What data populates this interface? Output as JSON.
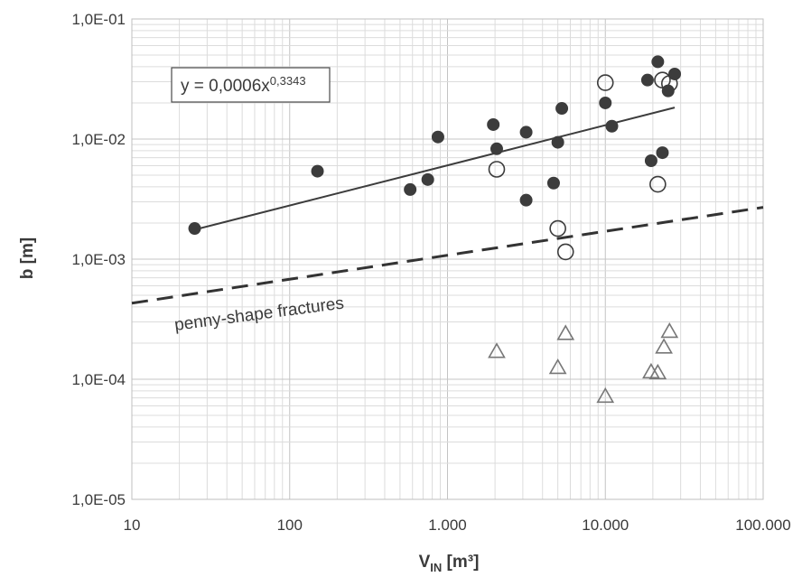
{
  "chart_data": {
    "type": "scatter",
    "xscale": "log",
    "yscale": "log",
    "xlim": [
      10,
      100000
    ],
    "ylim": [
      1e-05,
      0.1
    ],
    "grid": true,
    "xlabel": "V",
    "xlabel_sub": "IN",
    "xlabel_unit": " [m³]",
    "ylabel": "b [m]",
    "x_ticks": [
      {
        "value": 10,
        "label": "10"
      },
      {
        "value": 100,
        "label": "100"
      },
      {
        "value": 1000,
        "label": "1.000"
      },
      {
        "value": 10000,
        "label": "10.000"
      },
      {
        "value": 100000,
        "label": "100.000"
      }
    ],
    "y_ticks": [
      {
        "value": 1e-05,
        "label": "1,0E-05"
      },
      {
        "value": 0.0001,
        "label": "1,0E-04"
      },
      {
        "value": 0.001,
        "label": "1,0E-03"
      },
      {
        "value": 0.01,
        "label": "1,0E-02"
      },
      {
        "value": 0.1,
        "label": "1,0E-01"
      }
    ],
    "series": [
      {
        "marker": "filled-circle",
        "color": "#3c3c3c",
        "points": [
          [
            25,
            0.0018
          ],
          [
            150,
            0.0054
          ],
          [
            580,
            0.0038
          ],
          [
            750,
            0.0046
          ],
          [
            870,
            0.0104
          ],
          [
            1950,
            0.0132
          ],
          [
            2050,
            0.0083
          ],
          [
            3150,
            0.0114
          ],
          [
            3150,
            0.0031
          ],
          [
            4700,
            0.0043
          ],
          [
            5000,
            0.0094
          ],
          [
            5300,
            0.018
          ],
          [
            10000,
            0.02
          ],
          [
            11000,
            0.0128
          ],
          [
            18500,
            0.031
          ],
          [
            19500,
            0.0066
          ],
          [
            21500,
            0.044
          ],
          [
            23000,
            0.0077
          ],
          [
            25000,
            0.0252
          ],
          [
            27500,
            0.0348
          ]
        ]
      },
      {
        "marker": "open-circle",
        "color": "#3c3c3c",
        "points": [
          [
            2050,
            0.0056
          ],
          [
            5000,
            0.0018
          ],
          [
            5600,
            0.00115
          ],
          [
            10000,
            0.0295
          ],
          [
            21500,
            0.0042
          ],
          [
            23000,
            0.031
          ],
          [
            25500,
            0.029
          ]
        ]
      },
      {
        "marker": "open-triangle",
        "color": "#777777",
        "points": [
          [
            2050,
            0.00017
          ],
          [
            5000,
            0.000125
          ],
          [
            5600,
            0.00024
          ],
          [
            10000,
            7.2e-05
          ],
          [
            19500,
            0.000115
          ],
          [
            21500,
            0.000113
          ],
          [
            23500,
            0.000185
          ],
          [
            25500,
            0.00025
          ]
        ]
      }
    ],
    "trendline": {
      "style": "solid",
      "color": "#3c3c3c",
      "coef": 0.0006,
      "exponent": 0.3343,
      "x_range": [
        25,
        27500
      ],
      "equation_prefix": "y = 0,0006x",
      "equation_exponent": "0,3343"
    },
    "reference_line": {
      "style": "dashed",
      "color": "#333333",
      "label": "penny-shape fractures",
      "points": [
        [
          10,
          0.00043
        ],
        [
          100000,
          0.0027
        ]
      ]
    }
  }
}
